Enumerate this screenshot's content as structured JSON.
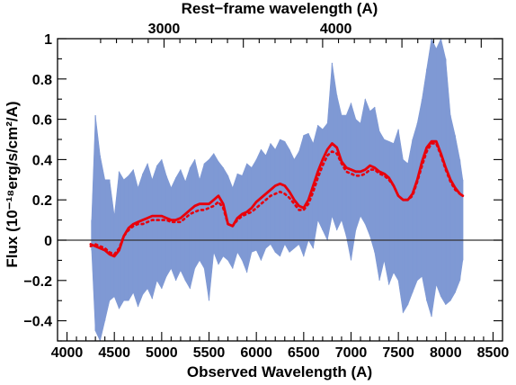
{
  "chart_data": {
    "type": "line",
    "title": "",
    "xlabel": "Observed Wavelength (A)",
    "ylabel": "Flux (10⁻¹⁸erg/s/cm²/A)",
    "top_xlabel": "Rest−frame wavelength (A)",
    "xlim": [
      3900,
      8600
    ],
    "ylim": [
      -0.5,
      1.0
    ],
    "x_ticks": [
      4000,
      4500,
      5000,
      5500,
      6000,
      6500,
      7000,
      7500,
      8000,
      8500
    ],
    "x_tick_labels": [
      "4000",
      "4500",
      "5000",
      "5500",
      "6000",
      "6500",
      "7000",
      "7500",
      "8000",
      "8500"
    ],
    "y_ticks": [
      -0.4,
      -0.2,
      0,
      0.2,
      0.4,
      0.6,
      0.8,
      1.0
    ],
    "y_tick_labels": [
      "−0.4",
      "−0.2",
      "0",
      "0.2",
      "0.4",
      "0.6",
      "0.8",
      "1"
    ],
    "top_ticks_observed": [
      5025,
      6840
    ],
    "top_tick_labels": [
      "3000",
      "4000"
    ],
    "zero_line": 0,
    "grid": false,
    "colors": {
      "spectrum": "#7f99d4",
      "model": "#e8000b",
      "axes": "#000000"
    },
    "series": [
      {
        "style": "filled-band",
        "x": [
          4260,
          4300,
          4350,
          4400,
          4450,
          4500,
          4550,
          4600,
          4650,
          4700,
          4750,
          4800,
          4850,
          4900,
          4950,
          5000,
          5050,
          5100,
          5150,
          5200,
          5250,
          5300,
          5350,
          5400,
          5450,
          5500,
          5550,
          5600,
          5650,
          5700,
          5750,
          5800,
          5850,
          5900,
          5950,
          6000,
          6050,
          6100,
          6150,
          6200,
          6250,
          6300,
          6350,
          6400,
          6450,
          6500,
          6550,
          6600,
          6650,
          6700,
          6750,
          6800,
          6850,
          6900,
          6950,
          7000,
          7050,
          7100,
          7150,
          7200,
          7250,
          7300,
          7350,
          7400,
          7450,
          7500,
          7550,
          7600,
          7650,
          7700,
          7750,
          7800,
          7850,
          7900,
          7950,
          8000,
          8050,
          8100,
          8150,
          8180
        ],
        "upper": [
          0.1,
          0.62,
          0.42,
          0.3,
          0.3,
          0.12,
          0.34,
          0.3,
          0.32,
          0.35,
          0.26,
          0.33,
          0.38,
          0.3,
          0.37,
          0.4,
          0.32,
          0.26,
          0.31,
          0.35,
          0.29,
          0.36,
          0.4,
          0.3,
          0.38,
          0.4,
          0.43,
          0.39,
          0.36,
          0.32,
          0.26,
          0.33,
          0.32,
          0.38,
          0.36,
          0.4,
          0.45,
          0.42,
          0.48,
          0.45,
          0.5,
          0.49,
          0.45,
          0.4,
          0.44,
          0.52,
          0.53,
          0.48,
          0.57,
          0.55,
          0.58,
          0.88,
          0.72,
          0.62,
          0.62,
          0.68,
          0.6,
          0.58,
          0.7,
          0.64,
          0.66,
          0.54,
          0.5,
          0.49,
          0.48,
          0.55,
          0.4,
          0.38,
          0.5,
          0.58,
          0.7,
          0.85,
          1.0,
          0.95,
          1.0,
          0.9,
          0.62,
          0.52,
          0.4,
          0.3
        ],
        "lower": [
          -0.05,
          -0.45,
          -0.5,
          -0.4,
          -0.3,
          -0.28,
          -0.34,
          -0.3,
          -0.3,
          -0.26,
          -0.33,
          -0.27,
          -0.24,
          -0.29,
          -0.2,
          -0.24,
          -0.18,
          -0.14,
          -0.2,
          -0.15,
          -0.2,
          -0.24,
          -0.14,
          -0.1,
          -0.14,
          -0.3,
          -0.06,
          -0.12,
          -0.08,
          -0.1,
          -0.14,
          -0.06,
          -0.1,
          -0.16,
          -0.06,
          -0.05,
          -0.1,
          -0.04,
          -0.02,
          -0.06,
          -0.08,
          -0.02,
          -0.06,
          -0.04,
          -0.02,
          -0.08,
          0.0,
          -0.04,
          0.1,
          0.05,
          0.0,
          0.12,
          0.05,
          0.1,
          0.02,
          -0.1,
          0.05,
          0.12,
          0.08,
          0.02,
          -0.06,
          -0.2,
          -0.1,
          -0.22,
          -0.16,
          -0.2,
          -0.36,
          -0.32,
          -0.26,
          -0.2,
          -0.18,
          -0.3,
          -0.38,
          -0.22,
          -0.28,
          -0.32,
          -0.3,
          -0.26,
          -0.2,
          -0.1
        ]
      },
      {
        "style": "solid",
        "x": [
          4250,
          4300,
          4350,
          4400,
          4450,
          4500,
          4550,
          4600,
          4650,
          4700,
          4750,
          4800,
          4850,
          4900,
          4950,
          5000,
          5050,
          5100,
          5150,
          5200,
          5250,
          5300,
          5350,
          5400,
          5450,
          5500,
          5550,
          5600,
          5650,
          5700,
          5750,
          5800,
          5850,
          5900,
          5950,
          6000,
          6050,
          6100,
          6150,
          6200,
          6250,
          6300,
          6350,
          6400,
          6450,
          6500,
          6550,
          6600,
          6650,
          6700,
          6750,
          6800,
          6850,
          6900,
          6950,
          7000,
          7050,
          7100,
          7150,
          7200,
          7250,
          7300,
          7350,
          7400,
          7450,
          7500,
          7550,
          7600,
          7650,
          7700,
          7750,
          7800,
          7850,
          7900,
          7950,
          8000,
          8050,
          8100,
          8150,
          8180
        ],
        "values": [
          -0.02,
          -0.03,
          -0.04,
          -0.05,
          -0.07,
          -0.08,
          -0.05,
          0.02,
          0.06,
          0.08,
          0.09,
          0.1,
          0.11,
          0.12,
          0.12,
          0.12,
          0.11,
          0.1,
          0.1,
          0.11,
          0.13,
          0.15,
          0.17,
          0.18,
          0.18,
          0.18,
          0.2,
          0.22,
          0.18,
          0.08,
          0.07,
          0.11,
          0.13,
          0.14,
          0.16,
          0.19,
          0.21,
          0.23,
          0.25,
          0.27,
          0.28,
          0.27,
          0.24,
          0.2,
          0.17,
          0.16,
          0.2,
          0.27,
          0.34,
          0.4,
          0.45,
          0.48,
          0.46,
          0.39,
          0.36,
          0.35,
          0.34,
          0.34,
          0.35,
          0.37,
          0.36,
          0.34,
          0.33,
          0.31,
          0.27,
          0.22,
          0.2,
          0.2,
          0.23,
          0.3,
          0.39,
          0.46,
          0.49,
          0.49,
          0.43,
          0.36,
          0.3,
          0.26,
          0.23,
          0.22
        ]
      },
      {
        "style": "dotted",
        "x": [
          4250,
          4300,
          4350,
          4400,
          4450,
          4500,
          4550,
          4600,
          4650,
          4700,
          4750,
          4800,
          4850,
          4900,
          4950,
          5000,
          5050,
          5100,
          5150,
          5200,
          5250,
          5300,
          5350,
          5400,
          5450,
          5500,
          5550,
          5600,
          5650,
          5700,
          5750,
          5800,
          5850,
          5900,
          5950,
          6000,
          6050,
          6100,
          6150,
          6200,
          6250,
          6300,
          6350,
          6400,
          6450,
          6500,
          6550,
          6600,
          6650,
          6700,
          6750,
          6800,
          6850,
          6900,
          6950,
          7000,
          7050,
          7100,
          7150,
          7200,
          7250,
          7300,
          7350,
          7400,
          7450,
          7500,
          7550,
          7600,
          7650,
          7700,
          7750,
          7800,
          7850,
          7900,
          7950,
          8000,
          8050,
          8100,
          8150,
          8180
        ],
        "values": [
          -0.03,
          -0.02,
          -0.03,
          -0.04,
          -0.06,
          -0.07,
          -0.04,
          0.02,
          0.05,
          0.07,
          0.08,
          0.08,
          0.09,
          0.1,
          0.1,
          0.1,
          0.1,
          0.09,
          0.09,
          0.09,
          0.11,
          0.13,
          0.14,
          0.15,
          0.15,
          0.16,
          0.17,
          0.19,
          0.16,
          0.08,
          0.07,
          0.1,
          0.12,
          0.13,
          0.14,
          0.16,
          0.18,
          0.2,
          0.22,
          0.23,
          0.24,
          0.23,
          0.21,
          0.18,
          0.15,
          0.15,
          0.18,
          0.24,
          0.31,
          0.37,
          0.42,
          0.44,
          0.43,
          0.38,
          0.34,
          0.33,
          0.32,
          0.32,
          0.33,
          0.35,
          0.35,
          0.33,
          0.32,
          0.3,
          0.27,
          0.22,
          0.2,
          0.2,
          0.22,
          0.29,
          0.37,
          0.44,
          0.48,
          0.48,
          0.42,
          0.35,
          0.29,
          0.25,
          0.23,
          0.22
        ]
      }
    ]
  }
}
